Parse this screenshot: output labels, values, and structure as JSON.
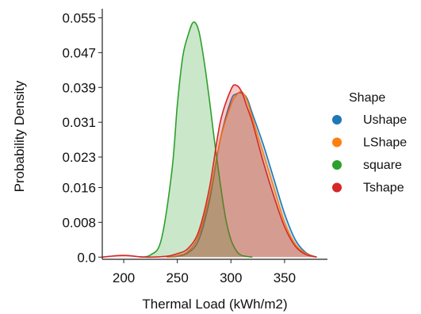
{
  "chart_data": {
    "type": "area",
    "title": "",
    "xlabel": "Thermal Load (kWh/m2)",
    "ylabel": "Probability Density",
    "xlim": [
      180,
      390
    ],
    "ylim": [
      -0.0005,
      0.056
    ],
    "x_ticks": [
      200,
      250,
      300,
      350
    ],
    "x_tick_labels": [
      "200",
      "250",
      "300",
      "350"
    ],
    "y_ticks": [
      0.0,
      0.008,
      0.016,
      0.023,
      0.031,
      0.039,
      0.047,
      0.055
    ],
    "y_tick_labels": [
      "0.0",
      "0.008",
      "0.016",
      "0.023",
      "0.031",
      "0.039",
      "0.047",
      "0.055"
    ],
    "grid": false,
    "legend": {
      "title": "Shape",
      "placement": "right"
    },
    "series": [
      {
        "name": "Ushape",
        "color": "#1f77b4",
        "x": [
          240,
          250,
          260,
          270,
          280,
          290,
          300,
          305,
          310,
          315,
          320,
          330,
          340,
          350,
          360,
          370,
          380
        ],
        "y": [
          0.0,
          0.0002,
          0.001,
          0.004,
          0.013,
          0.027,
          0.036,
          0.0375,
          0.0377,
          0.0365,
          0.033,
          0.026,
          0.018,
          0.01,
          0.004,
          0.001,
          0.0
        ]
      },
      {
        "name": "LShape",
        "color": "#ff7f0e",
        "x": [
          240,
          250,
          260,
          270,
          280,
          290,
          300,
          305,
          310,
          315,
          320,
          330,
          340,
          350,
          360,
          370,
          380
        ],
        "y": [
          0.0,
          0.0003,
          0.0013,
          0.005,
          0.014,
          0.027,
          0.035,
          0.0372,
          0.038,
          0.036,
          0.032,
          0.024,
          0.016,
          0.008,
          0.003,
          0.0008,
          0.0
        ]
      },
      {
        "name": "square",
        "color": "#2ca02c",
        "x": [
          215,
          225,
          235,
          245,
          250,
          255,
          260,
          265,
          270,
          275,
          280,
          285,
          290,
          295,
          300,
          305,
          310,
          320
        ],
        "y": [
          0.0,
          0.0005,
          0.004,
          0.02,
          0.035,
          0.046,
          0.051,
          0.054,
          0.052,
          0.045,
          0.036,
          0.026,
          0.017,
          0.009,
          0.004,
          0.0015,
          0.0004,
          0.0
        ]
      },
      {
        "name": "Tshape",
        "color": "#d62728",
        "x": [
          180,
          200,
          220,
          240,
          250,
          260,
          270,
          280,
          290,
          300,
          305,
          310,
          315,
          320,
          330,
          340,
          350,
          360,
          370,
          380
        ],
        "y": [
          0.0,
          0.0004,
          0.0,
          0.0002,
          0.0008,
          0.002,
          0.006,
          0.016,
          0.031,
          0.0385,
          0.0395,
          0.038,
          0.0345,
          0.031,
          0.022,
          0.014,
          0.007,
          0.0025,
          0.0006,
          0.0
        ]
      }
    ]
  }
}
